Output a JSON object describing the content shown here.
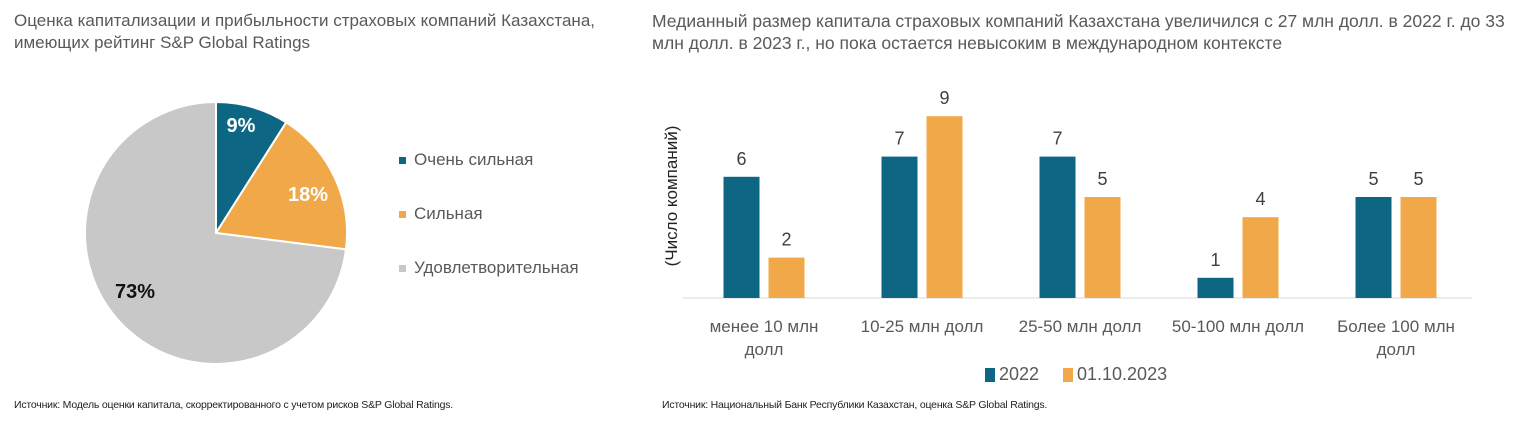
{
  "chart_data": [
    {
      "type": "pie",
      "title": "Оценка капитализации и прибыльности страховых компаний Казахстана, имеющих рейтинг S&P Global Ratings",
      "slices": [
        {
          "label": "Очень сильная",
          "value": 9,
          "display": "9%",
          "color": "#0d6683"
        },
        {
          "label": "Сильная",
          "value": 18,
          "display": "18%",
          "color": "#f0a848"
        },
        {
          "label": "Удовлетворительная",
          "value": 73,
          "display": "73%",
          "color": "#c8c8c8"
        }
      ],
      "legend_position": "right",
      "source": "Источник: Модель оценки капитала, скорректированного с учетом рисков S&P Global Ratings."
    },
    {
      "type": "bar",
      "title": "Медианный размер капитала страховых компаний Казахстана увеличился с 27 млн долл. в 2022 г. до 33 млн долл. в 2023 г., но пока остается невысоким в международном контексте",
      "ylabel": "(Число компаний)",
      "categories": [
        [
          "менее 10 млн",
          "долл"
        ],
        [
          "10-25 млн долл"
        ],
        [
          "25-50 млн долл"
        ],
        [
          "50-100 млн долл"
        ],
        [
          "Более 100 млн",
          "долл"
        ]
      ],
      "series": [
        {
          "name": "2022",
          "values": [
            6,
            7,
            7,
            1,
            5
          ],
          "color": "#0d6683"
        },
        {
          "name": "01.10.2023",
          "values": [
            2,
            9,
            5,
            4,
            5
          ],
          "color": "#f0a848"
        }
      ],
      "ylim": [
        0,
        9
      ],
      "grid": false,
      "legend_position": "bottom",
      "source": "Источник: Национальный Банк Республики Казахстан, оценка S&P Global Ratings."
    }
  ]
}
